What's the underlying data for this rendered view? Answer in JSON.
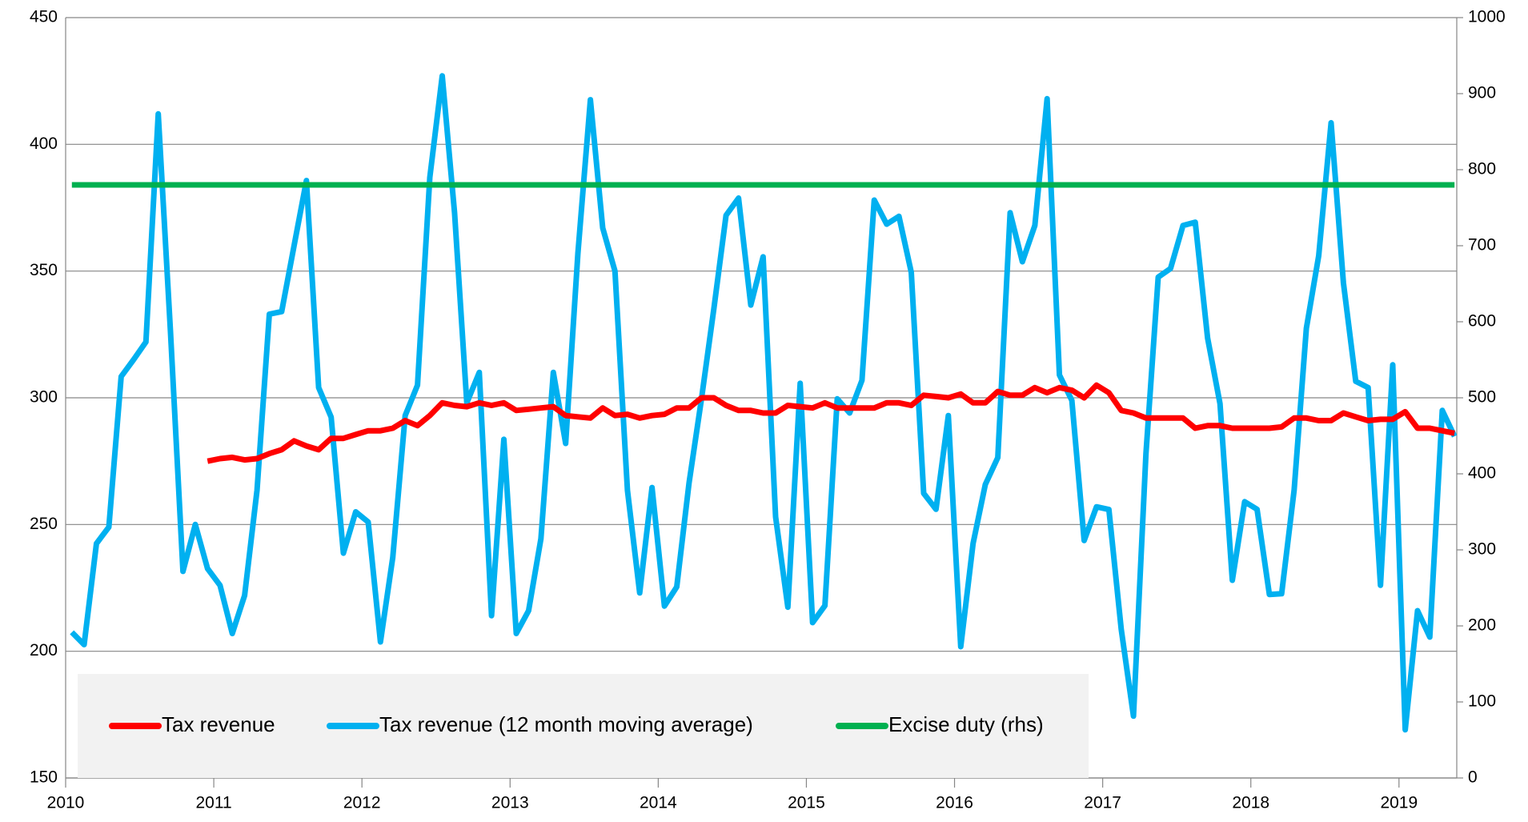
{
  "chart_data": {
    "type": "line",
    "x": [
      2010.042,
      2010.125,
      2010.208,
      2010.292,
      2010.375,
      2010.458,
      2010.542,
      2010.625,
      2010.708,
      2010.792,
      2010.875,
      2010.958,
      2011.042,
      2011.125,
      2011.208,
      2011.292,
      2011.375,
      2011.458,
      2011.542,
      2011.625,
      2011.708,
      2011.792,
      2011.875,
      2011.958,
      2012.042,
      2012.125,
      2012.208,
      2012.292,
      2012.375,
      2012.458,
      2012.542,
      2012.625,
      2012.708,
      2012.792,
      2012.875,
      2012.958,
      2013.042,
      2013.125,
      2013.208,
      2013.292,
      2013.375,
      2013.458,
      2013.542,
      2013.625,
      2013.708,
      2013.792,
      2013.875,
      2013.958,
      2014.042,
      2014.125,
      2014.208,
      2014.292,
      2014.375,
      2014.458,
      2014.542,
      2014.625,
      2014.708,
      2014.792,
      2014.875,
      2014.958,
      2015.042,
      2015.125,
      2015.208,
      2015.292,
      2015.375,
      2015.458,
      2015.542,
      2015.625,
      2015.708,
      2015.792,
      2015.875,
      2015.958,
      2016.042,
      2016.125,
      2016.208,
      2016.292,
      2016.375,
      2016.458,
      2016.542,
      2016.625,
      2016.708,
      2016.792,
      2016.875,
      2016.958,
      2017.042,
      2017.125,
      2017.208,
      2017.292,
      2017.375,
      2017.458,
      2017.542,
      2017.625,
      2017.708,
      2017.792,
      2017.875,
      2017.958,
      2018.042,
      2018.125,
      2018.208,
      2018.292,
      2018.375,
      2018.458,
      2018.542,
      2018.625,
      2018.708,
      2018.792,
      2018.875,
      2018.958,
      2019.042,
      2019.125,
      2019.208,
      2019.292,
      2019.375
    ],
    "series": [
      {
        "name": "Tax revenue",
        "color": "#ff0000",
        "values": [
          null,
          null,
          null,
          null,
          null,
          null,
          null,
          null,
          null,
          null,
          null,
          275,
          276,
          276.5,
          275.5,
          276,
          278,
          279.5,
          283,
          281,
          279.5,
          284,
          284,
          285.5,
          287,
          287,
          288,
          291,
          289,
          293,
          298,
          297,
          296.5,
          298,
          297,
          298,
          295,
          295.5,
          296,
          296.5,
          293,
          292.5,
          292,
          296,
          293,
          293.5,
          292,
          293,
          293.5,
          296,
          296,
          300,
          300,
          297,
          295,
          295,
          294,
          294,
          297,
          296.5,
          296,
          298,
          296,
          296,
          296,
          296,
          298,
          298,
          297,
          301,
          300.5,
          300,
          301.5,
          298,
          298,
          302.5,
          301,
          301,
          304,
          302,
          304,
          303,
          300,
          305,
          302,
          295,
          294,
          292,
          292,
          292,
          292,
          288,
          289,
          289,
          288,
          288,
          288,
          288,
          288.5,
          292,
          292,
          291,
          291,
          294,
          292.5,
          291,
          291.5,
          291.5,
          294.5,
          288,
          288,
          287,
          286
        ]
      },
      {
        "name": "Tax revenue (12 month moving average)",
        "color": "#00b0f0",
        "values": [
          207.5,
          202.6,
          242.5,
          249,
          308.4,
          315,
          322,
          412,
          326,
          231.5,
          250,
          232.6,
          226,
          207,
          222,
          263.5,
          333,
          334,
          360,
          385.7,
          304,
          292.4,
          238.7,
          255,
          251,
          203.7,
          237,
          293,
          305,
          387,
          427,
          373,
          298,
          310,
          214,
          283.6,
          207,
          216,
          244.4,
          310,
          282,
          357,
          417.6,
          367,
          350,
          263.5,
          223,
          264.6,
          217.8,
          225.4,
          266.5,
          299.6,
          335,
          372,
          378.8,
          336.6,
          355.6,
          253,
          217.4,
          305.7,
          211.3,
          218,
          299.6,
          294,
          306.9,
          378,
          368.5,
          371.6,
          349.5,
          262.3,
          256,
          293,
          201.8,
          242.5,
          265.8,
          276.4,
          373,
          353.7,
          368,
          418,
          309,
          299,
          243.7,
          257,
          255.9,
          208.7,
          174.4,
          278,
          347.6,
          351,
          368,
          369.3,
          323.6,
          297.7,
          228,
          259,
          256,
          222.4,
          222.7,
          263.5,
          327.4,
          356,
          408.5,
          345.3,
          306.5,
          304,
          226,
          313,
          169,
          216,
          205.6,
          295,
          284.8
        ]
      },
      {
        "name": "Excise duty (rhs)",
        "color": "#00b050",
        "axis": "y2",
        "values": [
          780,
          780,
          780,
          780,
          780,
          780,
          780,
          780,
          780,
          780,
          780,
          780,
          780,
          780,
          780,
          780,
          780,
          780,
          780,
          780,
          780,
          780,
          780,
          780,
          780,
          780,
          780,
          780,
          780,
          780,
          780,
          780,
          780,
          780,
          780,
          780,
          780,
          780,
          780,
          780,
          780,
          780,
          780,
          780,
          780,
          780,
          780,
          780,
          780,
          780,
          780,
          780,
          780,
          780,
          780,
          780,
          780,
          780,
          780,
          780,
          780,
          780,
          780,
          780,
          780,
          780,
          780,
          780,
          780,
          780,
          780,
          780,
          780,
          780,
          780,
          780,
          780,
          780,
          780,
          780,
          780,
          780,
          780,
          780,
          780,
          780,
          780,
          780,
          780,
          780,
          780,
          780,
          780,
          780,
          780,
          780,
          780,
          780,
          780,
          780,
          780,
          780,
          780,
          780,
          780,
          780,
          780,
          780,
          780,
          780,
          780,
          780,
          780
        ]
      }
    ],
    "xlim": [
      2010,
      2019.39
    ],
    "xticks": [
      2010,
      2011,
      2012,
      2013,
      2014,
      2015,
      2016,
      2017,
      2018,
      2019
    ],
    "ylim": [
      150,
      450
    ],
    "yticks": [
      150,
      200,
      250,
      300,
      350,
      400,
      450
    ],
    "y2lim": [
      0,
      1000
    ],
    "y2ticks": [
      0,
      100,
      200,
      300,
      400,
      500,
      600,
      700,
      800,
      900,
      1000
    ],
    "grid": true,
    "legend": "bottom-left"
  }
}
